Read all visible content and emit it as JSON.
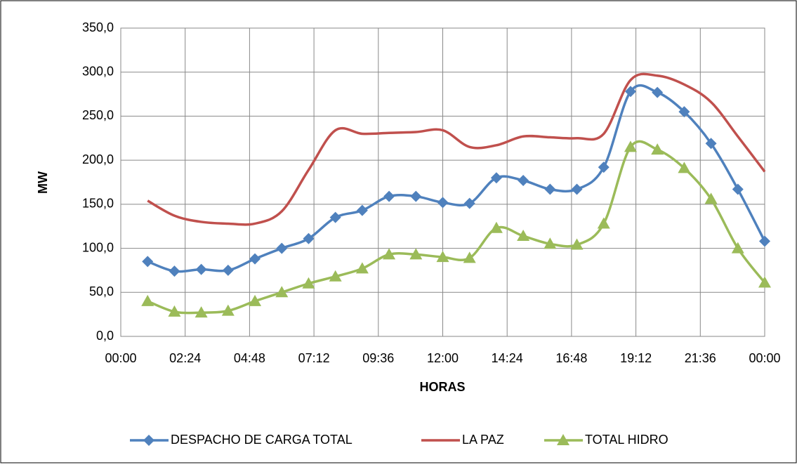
{
  "chart_data": {
    "type": "line",
    "x_label": "HORAS",
    "y_label": "MW",
    "x": [
      1,
      2,
      3,
      4,
      5,
      6,
      7,
      8,
      9,
      10,
      11,
      12,
      13,
      14,
      15,
      16,
      17,
      18,
      19,
      20,
      21,
      22,
      23,
      24
    ],
    "series": [
      {
        "name": "DESPACHO DE CARGA TOTAL",
        "color": "#4f81bd",
        "marker": "diamond",
        "values": [
          85,
          74,
          76,
          75,
          88,
          100,
          111,
          135,
          143,
          159,
          159,
          152,
          151,
          180,
          177,
          167,
          167,
          192,
          278,
          277,
          255,
          219,
          167,
          108
        ]
      },
      {
        "name": "LA PAZ",
        "color": "#c0504d",
        "marker": "none",
        "values": [
          154,
          137,
          130,
          128,
          128,
          142,
          189,
          234,
          230,
          231,
          232,
          234,
          215,
          217,
          227,
          226,
          225,
          230,
          291,
          296,
          286,
          266,
          227,
          187
        ]
      },
      {
        "name": "TOTAL HIDRO",
        "color": "#9bbb59",
        "marker": "triangle",
        "values": [
          40,
          28,
          27,
          29,
          40,
          50,
          60,
          68,
          77,
          93,
          93,
          90,
          89,
          123,
          114,
          105,
          104,
          128,
          215,
          212,
          191,
          156,
          100,
          61
        ]
      }
    ],
    "xlim": [
      0,
      24
    ],
    "xticks": [
      {
        "value": 0,
        "label": "00:00"
      },
      {
        "value": 2.4,
        "label": "02:24"
      },
      {
        "value": 4.8,
        "label": "04:48"
      },
      {
        "value": 7.2,
        "label": "07:12"
      },
      {
        "value": 9.6,
        "label": "09:36"
      },
      {
        "value": 12,
        "label": "12:00"
      },
      {
        "value": 14.4,
        "label": "14:24"
      },
      {
        "value": 16.8,
        "label": "16:48"
      },
      {
        "value": 19.2,
        "label": "19:12"
      },
      {
        "value": 21.6,
        "label": "21:36"
      },
      {
        "value": 24,
        "label": "00:00"
      }
    ],
    "ylim": [
      0,
      350
    ],
    "yticks": [
      {
        "value": 0,
        "label": "0,0"
      },
      {
        "value": 50,
        "label": "50,0"
      },
      {
        "value": 100,
        "label": "100,0"
      },
      {
        "value": 150,
        "label": "150,0"
      },
      {
        "value": 200,
        "label": "200,0"
      },
      {
        "value": 250,
        "label": "250,0"
      },
      {
        "value": 300,
        "label": "300,0"
      },
      {
        "value": 350,
        "label": "350,0"
      }
    ],
    "grid": true,
    "legend": "bottom"
  }
}
